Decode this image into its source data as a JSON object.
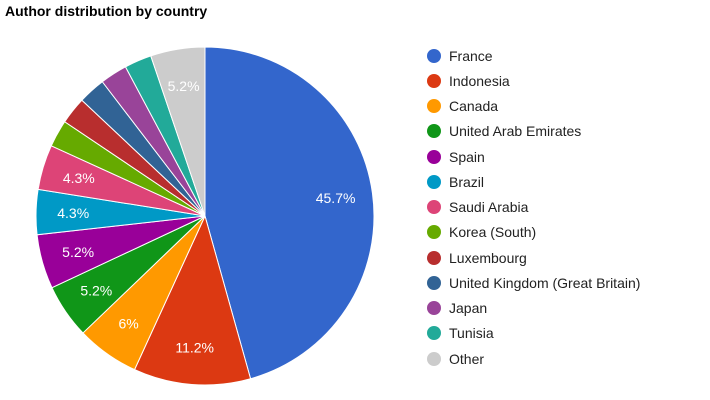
{
  "chart_data": {
    "type": "pie",
    "title": "Author distribution by country",
    "legend_position": "right",
    "slices": [
      {
        "label": "France",
        "value": 45.7,
        "value_label": "45.7%",
        "color": "#3366cc"
      },
      {
        "label": "Indonesia",
        "value": 11.2,
        "value_label": "11.2%",
        "color": "#dc3912"
      },
      {
        "label": "Canada",
        "value": 6.0,
        "value_label": "6%",
        "color": "#ff9900"
      },
      {
        "label": "United Arab Emirates",
        "value": 5.2,
        "value_label": "5.2%",
        "color": "#109618"
      },
      {
        "label": "Spain",
        "value": 5.2,
        "value_label": "5.2%",
        "color": "#990099"
      },
      {
        "label": "Brazil",
        "value": 4.3,
        "value_label": "4.3%",
        "color": "#0099c6"
      },
      {
        "label": "Saudi Arabia",
        "value": 4.3,
        "value_label": "4.3%",
        "color": "#dd4477"
      },
      {
        "label": "Korea (South)",
        "value": 2.6,
        "value_label": "",
        "color": "#66aa00"
      },
      {
        "label": "Luxembourg",
        "value": 2.6,
        "value_label": "",
        "color": "#b82e2e"
      },
      {
        "label": "United Kingdom (Great Britain)",
        "value": 2.6,
        "value_label": "",
        "color": "#316395"
      },
      {
        "label": "Japan",
        "value": 2.6,
        "value_label": "",
        "color": "#994499"
      },
      {
        "label": "Tunisia",
        "value": 2.6,
        "value_label": "",
        "color": "#22aa99"
      },
      {
        "label": "Other",
        "value": 5.2,
        "value_label": "5.2%",
        "color": "#cccccc"
      }
    ]
  }
}
